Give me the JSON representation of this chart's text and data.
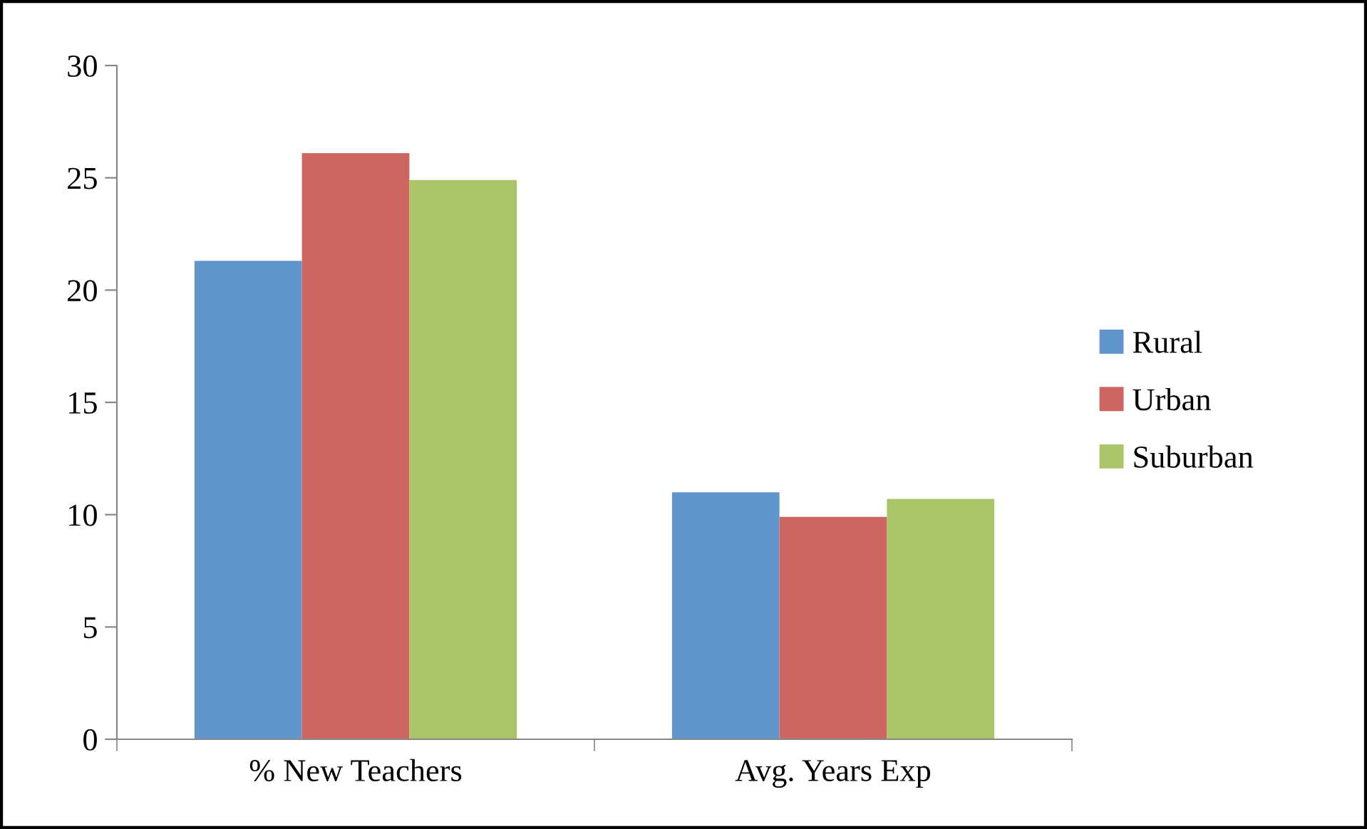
{
  "chart_data": {
    "type": "bar",
    "categories": [
      "% New Teachers",
      "Avg. Years Exp"
    ],
    "series": [
      {
        "name": "Rural",
        "color": "#6096cc",
        "values": [
          21.3,
          11.0
        ]
      },
      {
        "name": "Urban",
        "color": "#cd6660",
        "values": [
          26.1,
          9.9
        ]
      },
      {
        "name": "Suburban",
        "color": "#aac46a",
        "values": [
          24.9,
          10.7
        ]
      }
    ],
    "ylim": [
      0,
      30
    ],
    "yticks": [
      0,
      5,
      10,
      15,
      20,
      25,
      30
    ],
    "grid": false,
    "legend": "right"
  }
}
